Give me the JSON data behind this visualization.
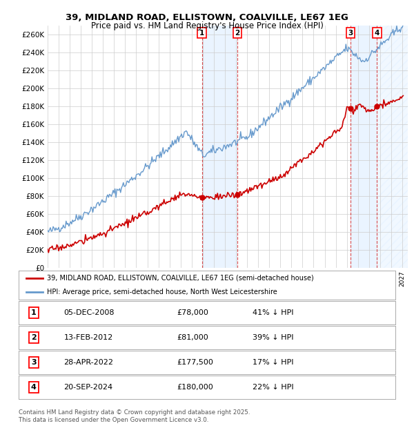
{
  "title_line1": "39, MIDLAND ROAD, ELLISTOWN, COALVILLE, LE67 1EG",
  "title_line2": "Price paid vs. HM Land Registry's House Price Index (HPI)",
  "ylim": [
    0,
    270000
  ],
  "yticks": [
    0,
    20000,
    40000,
    60000,
    80000,
    100000,
    120000,
    140000,
    160000,
    180000,
    200000,
    220000,
    240000,
    260000
  ],
  "ytick_labels": [
    "£0",
    "£20K",
    "£40K",
    "£60K",
    "£80K",
    "£100K",
    "£120K",
    "£140K",
    "£160K",
    "£180K",
    "£200K",
    "£220K",
    "£240K",
    "£260K"
  ],
  "xlim_start": 1995.0,
  "xlim_end": 2027.5,
  "transactions": [
    {
      "num": 1,
      "date": "05-DEC-2008",
      "year": 2008.92,
      "price": 78000,
      "pct": "41%"
    },
    {
      "num": 2,
      "date": "13-FEB-2012",
      "year": 2012.12,
      "price": 81000,
      "pct": "39%"
    },
    {
      "num": 3,
      "date": "28-APR-2022",
      "year": 2022.32,
      "price": 177500,
      "pct": "17%"
    },
    {
      "num": 4,
      "date": "20-SEP-2024",
      "year": 2024.72,
      "price": 180000,
      "pct": "22%"
    }
  ],
  "legend_line1": "39, MIDLAND ROAD, ELLISTOWN, COALVILLE, LE67 1EG (semi-detached house)",
  "legend_line2": "HPI: Average price, semi-detached house, North West Leicestershire",
  "red_color": "#cc0000",
  "blue_color": "#6699cc",
  "footer": "Contains HM Land Registry data © Crown copyright and database right 2025.\nThis data is licensed under the Open Government Licence v3.0.",
  "background_color": "#ffffff",
  "grid_color": "#cccccc",
  "shade_color": "#ddeeff",
  "hatch_color": "#ddeeff"
}
